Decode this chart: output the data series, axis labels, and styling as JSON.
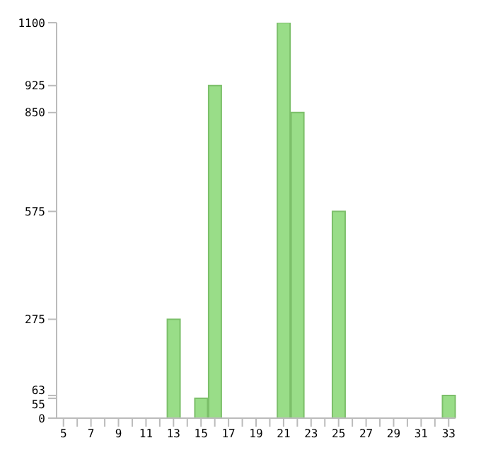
{
  "chart_data": {
    "type": "bar",
    "categories": [
      "5",
      null,
      "7",
      null,
      "9",
      null,
      "11",
      null,
      "13",
      null,
      "15",
      null,
      "17",
      null,
      "19",
      null,
      "21",
      null,
      "23",
      null,
      "25",
      null,
      "27",
      null,
      "29",
      null,
      "31",
      null,
      "33"
    ],
    "values": [
      0,
      0,
      0,
      0,
      0,
      0,
      0,
      0,
      275,
      0,
      55,
      925,
      0,
      0,
      0,
      0,
      1100,
      850,
      0,
      0,
      575,
      0,
      0,
      0,
      0,
      0,
      0,
      0,
      63
    ],
    "color": "#99dd88",
    "ylim": [
      0,
      1100
    ],
    "yticks": [
      0,
      55,
      63,
      275,
      575,
      850,
      925,
      1100
    ],
    "grid": false
  }
}
